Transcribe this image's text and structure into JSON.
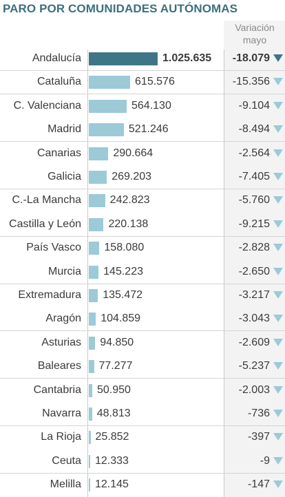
{
  "title": "PARO POR COMUNIDADES AUTÓNOMAS",
  "column_header_line1": "Variación",
  "column_header_line2": "mayo",
  "colors": {
    "title": "#3d6f80",
    "highlight_bar": "#3e7687",
    "bar": "#9ccad7"
  },
  "icons": {
    "change_marker": "arrow-down-icon"
  },
  "chart_data": {
    "type": "bar",
    "orientation": "horizontal",
    "title": "PARO POR COMUNIDADES AUTÓNOMAS",
    "categories": [
      "Andalucía",
      "Cataluña",
      "C. Valenciana",
      "Madrid",
      "Canarias",
      "Galicia",
      "C.-La Mancha",
      "Castilla y León",
      "País Vasco",
      "Murcia",
      "Extremadura",
      "Aragón",
      "Asturias",
      "Baleares",
      "Cantabria",
      "Navarra",
      "La Rioja",
      "Ceuta",
      "Melilla"
    ],
    "values": [
      1025635,
      615576,
      564130,
      521246,
      290664,
      269203,
      242823,
      220138,
      158080,
      145223,
      135472,
      104859,
      94850,
      77277,
      50950,
      48813,
      25852,
      12333,
      12145
    ],
    "value_labels": [
      "1.025.635",
      "615.576",
      "564.130",
      "521.246",
      "290.664",
      "269.203",
      "242.823",
      "220.138",
      "158.080",
      "145.223",
      "135.472",
      "104.859",
      "94.850",
      "77.277",
      "50.950",
      "48.813",
      "25.852",
      "12.333",
      "12.145"
    ],
    "change_series_name": "Variación mayo",
    "changes": [
      -18079,
      -15356,
      -9104,
      -8494,
      -2564,
      -7405,
      -5760,
      -9215,
      -2828,
      -2650,
      -3217,
      -3043,
      -2609,
      -5237,
      -2003,
      -736,
      -397,
      -9,
      -147
    ],
    "change_labels": [
      "-18.079",
      "-15.356",
      "-9.104",
      "-8.494",
      "-2.564",
      "-7.405",
      "-5.760",
      "-9.215",
      "-2.828",
      "-2.650",
      "-3.217",
      "-3.043",
      "-2.609",
      "-5.237",
      "-2.003",
      "-736",
      "-397",
      "-9",
      "-147"
    ],
    "xlim": [
      0,
      1025635
    ],
    "grid": false
  }
}
